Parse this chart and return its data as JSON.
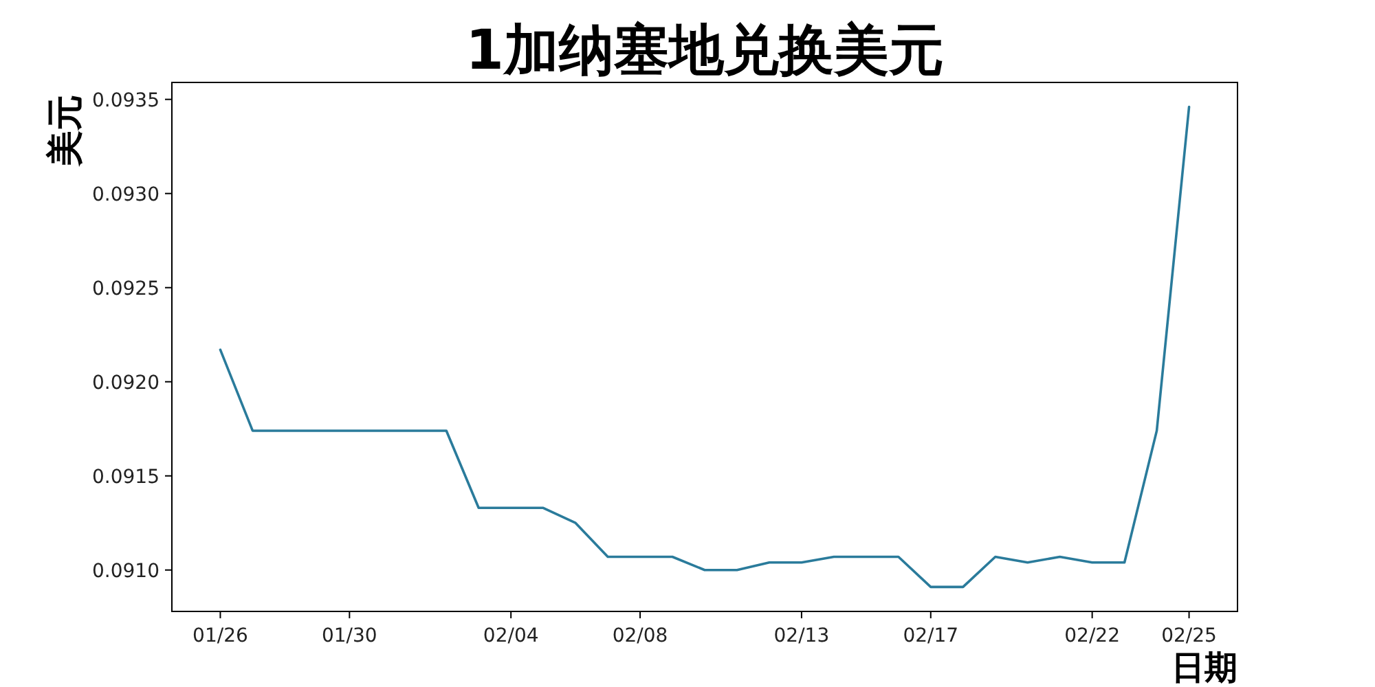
{
  "chart_data": {
    "type": "line",
    "title": "1加纳塞地兑换美元",
    "xlabel": "日期",
    "ylabel": "美元",
    "categories": [
      "01/26",
      null,
      null,
      null,
      "01/30",
      null,
      null,
      null,
      null,
      "02/04",
      null,
      null,
      null,
      "02/08",
      null,
      null,
      null,
      null,
      "02/13",
      null,
      null,
      null,
      "02/17",
      null,
      null,
      null,
      null,
      "02/22",
      null,
      null,
      "02/25"
    ],
    "series": [
      {
        "color": "#2a7b9b",
        "values": [
          0.09217,
          0.09174,
          0.09174,
          0.09174,
          0.09174,
          0.09174,
          0.09174,
          0.09174,
          0.09133,
          0.09133,
          0.09133,
          0.09125,
          0.09107,
          0.09107,
          0.09107,
          0.091,
          0.091,
          0.09104,
          0.09104,
          0.09107,
          0.09107,
          0.09107,
          0.09091,
          0.09091,
          0.09107,
          0.09104,
          0.09107,
          0.09104,
          0.09104,
          0.09174,
          0.09346
        ]
      }
    ],
    "ylim": [
      0.09078,
      0.09359
    ],
    "yticks": [
      {
        "value": 0.091,
        "label": "0.0910"
      },
      {
        "value": 0.0915,
        "label": "0.0915"
      },
      {
        "value": 0.092,
        "label": "0.0920"
      },
      {
        "value": 0.0925,
        "label": "0.0925"
      },
      {
        "value": 0.093,
        "label": "0.0930"
      },
      {
        "value": 0.0935,
        "label": "0.0935"
      }
    ],
    "grid": false,
    "marker": "none",
    "line_style": "solid"
  }
}
